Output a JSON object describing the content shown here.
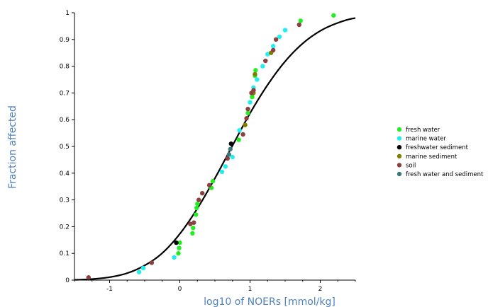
{
  "chart_data": {
    "type": "scatter",
    "title": "",
    "xlabel": "log10 of NOERs [mmol/kg]",
    "ylabel": "Fraction affected",
    "xlim": [
      -1.5,
      2.5
    ],
    "ylim": [
      0,
      1
    ],
    "x_ticks": [
      "-1",
      "0",
      "1",
      "2"
    ],
    "y_ticks": [
      "0",
      "0.1",
      "0.2",
      "0.3",
      "0.4",
      "0.5",
      "0.6",
      "0.7",
      "0.8",
      "0.9",
      "1"
    ],
    "grid": false,
    "legend_position": "right",
    "curve": {
      "type": "log-logistic fit",
      "color": "#000000",
      "x": [
        -1.5,
        -1.25,
        -1.0,
        -0.75,
        -0.5,
        -0.25,
        0.0,
        0.25,
        0.5,
        0.75,
        1.0,
        1.25,
        1.5,
        1.75,
        2.0,
        2.25,
        2.5
      ],
      "y": [
        0.001,
        0.004,
        0.011,
        0.026,
        0.055,
        0.101,
        0.173,
        0.268,
        0.381,
        0.503,
        0.624,
        0.73,
        0.818,
        0.885,
        0.932,
        0.962,
        0.98
      ]
    },
    "series": [
      {
        "name": "fresh water",
        "color": "#22ee22",
        "points": [
          [
            -0.02,
            0.1
          ],
          [
            -0.01,
            0.12
          ],
          [
            0.0,
            0.14
          ],
          [
            0.18,
            0.175
          ],
          [
            0.19,
            0.195
          ],
          [
            0.23,
            0.245
          ],
          [
            0.24,
            0.27
          ],
          [
            0.25,
            0.285
          ],
          [
            0.45,
            0.345
          ],
          [
            0.47,
            0.37
          ],
          [
            0.84,
            0.525
          ],
          [
            0.97,
            0.625
          ],
          [
            1.03,
            0.685
          ],
          [
            1.07,
            0.765
          ],
          [
            1.08,
            0.785
          ],
          [
            1.72,
            0.97
          ],
          [
            2.19,
            0.99
          ]
        ]
      },
      {
        "name": "marine water",
        "color": "#22eeee",
        "points": [
          [
            -0.58,
            0.03
          ],
          [
            -0.52,
            0.045
          ],
          [
            -0.08,
            0.085
          ],
          [
            0.6,
            0.405
          ],
          [
            0.65,
            0.425
          ],
          [
            0.75,
            0.46
          ],
          [
            0.85,
            0.56
          ],
          [
            1.0,
            0.665
          ],
          [
            1.05,
            0.72
          ],
          [
            1.1,
            0.75
          ],
          [
            1.18,
            0.8
          ],
          [
            1.25,
            0.845
          ],
          [
            1.33,
            0.875
          ],
          [
            1.42,
            0.91
          ],
          [
            1.5,
            0.935
          ]
        ]
      },
      {
        "name": "freshwater sediment",
        "color": "#000000",
        "points": [
          [
            -0.05,
            0.14
          ],
          [
            0.73,
            0.51
          ]
        ]
      },
      {
        "name": "marine sediment",
        "color": "#808000",
        "points": [
          [
            0.93,
            0.58
          ],
          [
            1.05,
            0.7
          ],
          [
            1.07,
            0.77
          ],
          [
            1.3,
            0.85
          ]
        ]
      },
      {
        "name": "soil",
        "color": "#8b4040",
        "points": [
          [
            -1.3,
            0.01
          ],
          [
            -0.4,
            0.065
          ],
          [
            0.15,
            0.21
          ],
          [
            0.2,
            0.215
          ],
          [
            0.27,
            0.3
          ],
          [
            0.32,
            0.325
          ],
          [
            0.42,
            0.355
          ],
          [
            0.68,
            0.455
          ],
          [
            0.9,
            0.545
          ],
          [
            0.95,
            0.605
          ],
          [
            0.97,
            0.64
          ],
          [
            1.02,
            0.7
          ],
          [
            1.05,
            0.71
          ],
          [
            1.22,
            0.82
          ],
          [
            1.33,
            0.86
          ],
          [
            1.37,
            0.9
          ],
          [
            1.7,
            0.955
          ]
        ]
      },
      {
        "name": "fresh water and sediment",
        "color": "#3a7a7a",
        "points": [
          [
            0.7,
            0.47
          ],
          [
            0.72,
            0.49
          ]
        ]
      }
    ]
  }
}
